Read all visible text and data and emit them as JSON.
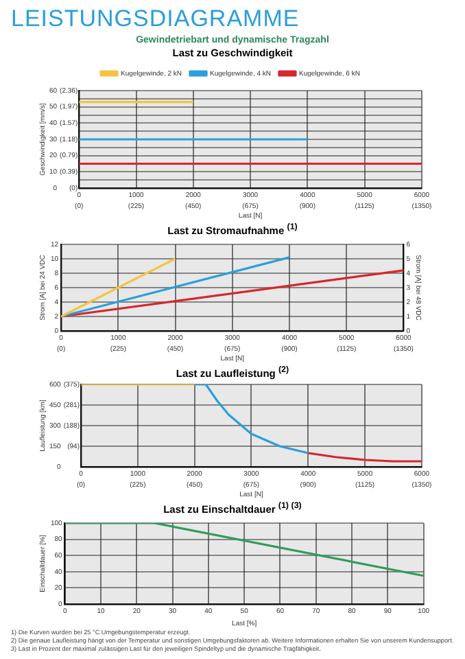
{
  "chart_data": [
    {
      "type": "line",
      "title": "Last zu Geschwindigkeit",
      "annotations": [
        "LEISTUNGSDIAGRAMME",
        "Gewindetriebart und dynamische Tragzahl"
      ],
      "xlabel": "Last [N]",
      "ylabel": "Geschwindigkeit [mm/s]",
      "xlim": [
        0,
        6000
      ],
      "xticks": [
        0,
        1000,
        2000,
        3000,
        4000,
        5000,
        6000
      ],
      "x2lim": [
        0,
        1350
      ],
      "x2ticks": [
        {
          "value": 0,
          "label": "(0)"
        },
        {
          "value": 225,
          "label": "(225)"
        },
        {
          "value": 450,
          "label": "(450)"
        },
        {
          "value": 675,
          "label": "(675)"
        },
        {
          "value": 900,
          "label": "(900)"
        },
        {
          "value": 1125,
          "label": "(1125)"
        },
        {
          "value": 1350,
          "label": "(1350)"
        }
      ],
      "ylim": [
        0,
        60
      ],
      "yticks": [
        0,
        {
          "value": 5,
          "label": null
        },
        10,
        {
          "value": 15,
          "label": null
        },
        20,
        {
          "value": 25,
          "label": null
        },
        30,
        {
          "value": 35,
          "label": null
        },
        40,
        {
          "value": 45,
          "label": null
        },
        50,
        {
          "value": 55,
          "label": null
        },
        60
      ],
      "y2lim": [
        0,
        2.36
      ],
      "y2ticks": [
        {
          "value": 0,
          "label": "(0)"
        },
        {
          "value": 0.39,
          "label": "(0.39)"
        },
        {
          "value": 0.79,
          "label": "(0.79)"
        },
        {
          "value": 1.18,
          "label": "(1.18)"
        },
        {
          "value": 1.57,
          "label": "(1.57)"
        },
        {
          "value": 1.97,
          "label": "(1.97)"
        },
        {
          "value": 2.36,
          "label": "(2.36)"
        }
      ],
      "grid": true,
      "legend": "top",
      "marker": "none",
      "series": [
        {
          "name": "Kugelgewinde, 2 kN",
          "color": "#f5c342",
          "x": [
            0,
            2000
          ],
          "values": [
            53,
            53
          ]
        },
        {
          "name": "Kugelgewinde, 4 kN",
          "color": "#2b9fd9",
          "x": [
            0,
            4000
          ],
          "values": [
            30,
            30
          ]
        },
        {
          "name": "Kugelgewinde, 6 kN",
          "color": "#d7262e",
          "x": [
            0,
            6000
          ],
          "values": [
            15,
            15
          ]
        }
      ]
    },
    {
      "type": "line",
      "title": "Last zu Stromaufnahme $^{(1)}$",
      "xlabel": "Last [N]",
      "ylabel": "Strom [A] bei 24 VDC",
      "y2label": "Strom [A] bei 48 VDC",
      "xlim": [
        0,
        6000
      ],
      "xticks": [
        0,
        1000,
        2000,
        3000,
        4000,
        5000,
        6000
      ],
      "x2lim": [
        0,
        1350
      ],
      "x2ticks": [
        {
          "value": 0,
          "label": "(0)"
        },
        {
          "value": 225,
          "label": "(225)"
        },
        {
          "value": 450,
          "label": "(450)"
        },
        {
          "value": 675,
          "label": "(675)"
        },
        {
          "value": 900,
          "label": "(900)"
        },
        {
          "value": 1125,
          "label": "(1125)"
        },
        {
          "value": 1350,
          "label": "(1350)"
        }
      ],
      "ylim": [
        0,
        12
      ],
      "yticks": [
        0,
        2,
        4,
        6,
        8,
        10,
        12
      ],
      "y2lim": [
        0,
        6
      ],
      "y2ticks": [
        0,
        1,
        2,
        3,
        4,
        5,
        6
      ],
      "grid": true,
      "marker": "none",
      "series": [
        {
          "color": "#f5c342",
          "x": [
            0,
            2000
          ],
          "values": [
            2,
            10
          ]
        },
        {
          "color": "#2b9fd9",
          "x": [
            0,
            4000
          ],
          "values": [
            2,
            10.2
          ]
        },
        {
          "color": "#d7262e",
          "x": [
            0,
            6000
          ],
          "values": [
            2,
            8.4
          ]
        }
      ]
    },
    {
      "type": "line",
      "title": "Last zu Laufleistung $^{(2)}$",
      "xlabel": "Last [N]",
      "ylabel": "Laufleistung [km]",
      "xlim": [
        0,
        6000
      ],
      "xticks": [
        0,
        1000,
        2000,
        3000,
        4000,
        5000,
        6000
      ],
      "x2lim": [
        0,
        1350
      ],
      "x2ticks": [
        {
          "value": 0,
          "label": "(0)"
        },
        {
          "value": 225,
          "label": "(225)"
        },
        {
          "value": 450,
          "label": "(450)"
        },
        {
          "value": 675,
          "label": "(675)"
        },
        {
          "value": 900,
          "label": "(900)"
        },
        {
          "value": 1125,
          "label": "(1125)"
        },
        {
          "value": 1350,
          "label": "(1350)"
        }
      ],
      "ylim": [
        0,
        600
      ],
      "yticks": [
        0,
        150,
        300,
        450,
        600
      ],
      "y2lim": [
        0,
        375
      ],
      "y2ticks": [
        {
          "value": 94,
          "label": "(94)"
        },
        {
          "value": 188,
          "label": "(188)"
        },
        {
          "value": 281,
          "label": "(281)"
        },
        {
          "value": 375,
          "label": "(375)"
        }
      ],
      "grid": true,
      "marker": "none",
      "series": [
        {
          "color": "#f5c342",
          "x": [
            0,
            2000
          ],
          "values": [
            600,
            600
          ]
        },
        {
          "color": "#2b9fd9",
          "x": [
            2000,
            2200,
            2400,
            2600,
            3000,
            3500,
            4000
          ],
          "values": [
            600,
            600,
            480,
            380,
            240,
            150,
            100
          ]
        },
        {
          "color": "#d7262e",
          "x": [
            4000,
            4500,
            5000,
            5500,
            6000
          ],
          "values": [
            100,
            70,
            50,
            40,
            40
          ]
        }
      ]
    },
    {
      "type": "line",
      "title": "Last zu Einschaltdauer $^{(1) (3)}$",
      "xlabel": "Last [%]",
      "ylabel": "Einschaltdauer [%]",
      "annotations": [
        "1) Die Kurven wurden bei 25 °C Umgebungstemperatur erzeugt.",
        "2) Die genaue Laufleistung hängt von der Temperatur und sonstigen Umgebungsfaktoren ab. Weitere Informationen erhalten Sie von unserem Kundensupport.",
        "3) Last in Prozent der maximal zulässigen Last für den jeweiligen Spindeltyp und die dynamische Tragfähigkeit."
      ],
      "xlim": [
        0,
        100
      ],
      "xticks": [
        0,
        10,
        20,
        30,
        40,
        50,
        60,
        70,
        80,
        90,
        100
      ],
      "ylim": [
        0,
        100
      ],
      "yticks": [
        0,
        20,
        40,
        60,
        80,
        100
      ],
      "grid": true,
      "marker": "none",
      "series": [
        {
          "color": "#2e9e5b",
          "x": [
            0,
            25,
            100
          ],
          "values": [
            100,
            100,
            35
          ]
        }
      ]
    }
  ]
}
